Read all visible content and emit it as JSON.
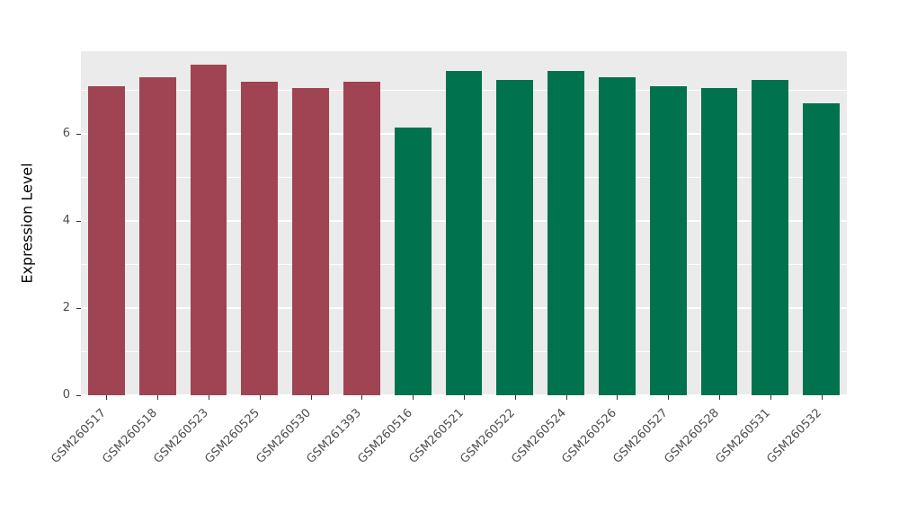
{
  "chart": {
    "ylabel": "Expression Level",
    "panel_bg": "#EBEBEB",
    "grid_color": "#FFFFFF",
    "tick_text_color": "#4D4D4D"
  },
  "chart_data": {
    "type": "bar",
    "title": "",
    "xlabel": "",
    "ylabel": "Expression Level",
    "categories": [
      "GSM260517",
      "GSM260518",
      "GSM260523",
      "GSM260525",
      "GSM260530",
      "GSM261393",
      "GSM260516",
      "GSM260521",
      "GSM260522",
      "GSM260524",
      "GSM260526",
      "GSM260527",
      "GSM260528",
      "GSM260531",
      "GSM260532"
    ],
    "values": [
      7.1,
      7.3,
      7.6,
      7.2,
      7.05,
      7.2,
      6.15,
      7.45,
      7.25,
      7.45,
      7.3,
      7.1,
      7.05,
      7.25,
      6.7
    ],
    "groups": [
      "A",
      "A",
      "A",
      "A",
      "A",
      "A",
      "B",
      "B",
      "B",
      "B",
      "B",
      "B",
      "B",
      "B",
      "B"
    ],
    "colors": {
      "A": "#A04352",
      "B": "#00724E"
    },
    "yticks": [
      0,
      2,
      4,
      6
    ],
    "yticks_minor": [
      1,
      3,
      5,
      7
    ],
    "ylim": [
      0,
      7.9
    ],
    "grid": "on",
    "legend": "none"
  }
}
